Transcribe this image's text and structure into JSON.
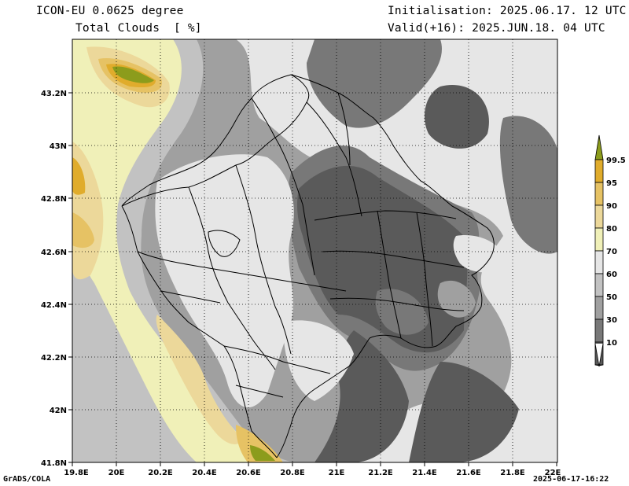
{
  "header": {
    "model": "ICON-EU 0.0625 degree",
    "parameter": "Total Clouds  [ %]",
    "init": "Initialisation: 2025.06.17. 12 UTC",
    "valid": "Valid(+16): 2025.JUN.18. 04 UTC"
  },
  "footer": {
    "left": "GrADS/COLA",
    "right": "2025-06-17-16:22"
  },
  "axes": {
    "lon_labels": [
      "19.8E",
      "20E",
      "20.2E",
      "20.4E",
      "20.6E",
      "20.8E",
      "21E",
      "21.2E",
      "21.4E",
      "21.6E",
      "21.8E",
      "22E"
    ],
    "lat_labels": [
      "43.2N",
      "43N",
      "42.8N",
      "42.6N",
      "42.4N",
      "42.2N",
      "42N",
      "41.8N"
    ],
    "lon_range": [
      19.8,
      22.0
    ],
    "lat_range": [
      41.8,
      43.4
    ]
  },
  "legend": {
    "levels": [
      "10",
      "30",
      "50",
      "60",
      "70",
      "80",
      "90",
      "95",
      "99.5"
    ],
    "colors": [
      "#ffffff",
      "#5a5a5a",
      "#787878",
      "#a0a0a0",
      "#c2c2c2",
      "#e6e6e6",
      "#f0f0b8",
      "#ecd89a",
      "#e6c264",
      "#e0ac2c",
      "#8c9c1c"
    ]
  },
  "colors": {
    "c0": "#5a5a5a",
    "c1": "#787878",
    "c2": "#a0a0a0",
    "c3": "#c2c2c2",
    "c4": "#e6e6e6",
    "c5": "#f0f0b8",
    "c6": "#ecd89a",
    "c7": "#e6c264",
    "c8": "#e0ac2c",
    "c9": "#8c9c1c",
    "border": "#000000"
  }
}
